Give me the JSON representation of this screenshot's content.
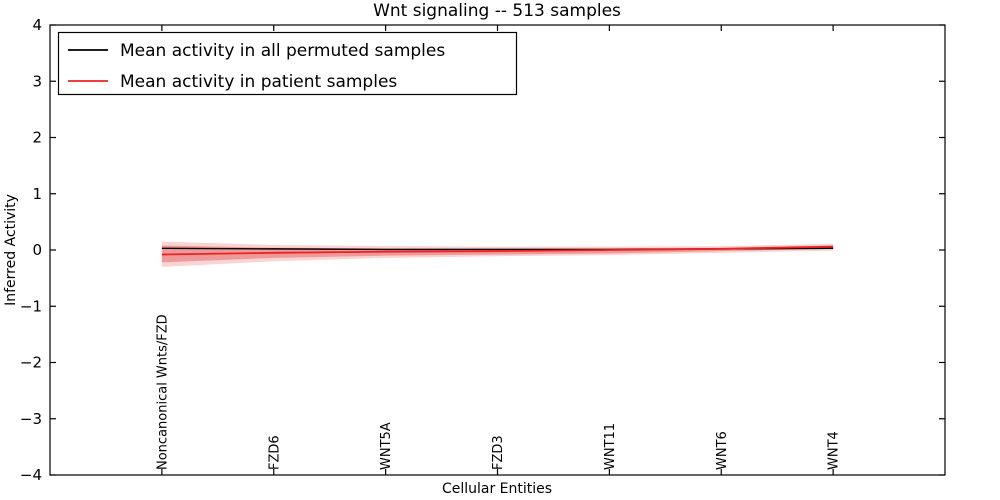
{
  "figure": {
    "background": "#ffffff"
  },
  "chart_data": {
    "type": "line",
    "title": "Wnt signaling -- 513 samples",
    "xlabel": "Cellular Entities",
    "ylabel": "Inferred Activity",
    "ylim": [
      -4,
      4
    ],
    "yticks": [
      -4,
      -3,
      -2,
      -1,
      0,
      1,
      2,
      3,
      4
    ],
    "grid": false,
    "legend_position": "upper left",
    "categories": [
      "Noncanonical Wnts/FZD",
      "FZD6",
      "WNT5A",
      "FZD3",
      "WNT11",
      "WNT6",
      "WNT4"
    ],
    "series": [
      {
        "name": "Mean activity in all permuted samples",
        "color": "#000000",
        "values": [
          0.03,
          0.02,
          0.01,
          0.01,
          0.01,
          0.02,
          0.03
        ]
      },
      {
        "name": "Mean activity in patient samples",
        "color": "#ee2222",
        "values": [
          -0.08,
          -0.05,
          -0.03,
          -0.02,
          0.0,
          0.02,
          0.06
        ]
      }
    ],
    "bands": [
      {
        "name": "patient-outer-band",
        "color": "#f08080",
        "opacity": 0.35,
        "upper": [
          0.15,
          0.09,
          0.07,
          0.06,
          0.06,
          0.07,
          0.11
        ],
        "lower": [
          -0.3,
          -0.2,
          -0.14,
          -0.11,
          -0.09,
          -0.05,
          -0.01
        ]
      },
      {
        "name": "patient-inner-band",
        "color": "#e05555",
        "opacity": 0.45,
        "upper": [
          0.08,
          0.04,
          0.03,
          0.03,
          0.03,
          0.04,
          0.08
        ],
        "lower": [
          -0.22,
          -0.14,
          -0.1,
          -0.08,
          -0.06,
          -0.02,
          0.02
        ]
      }
    ]
  }
}
